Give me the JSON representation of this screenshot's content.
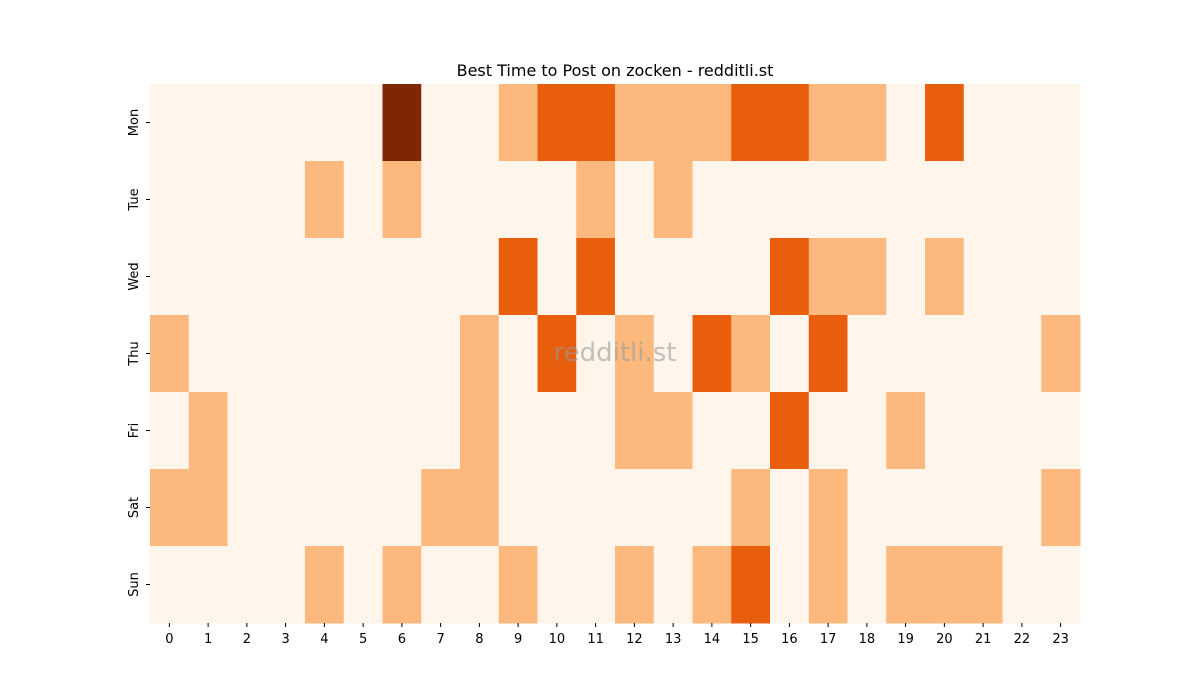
{
  "chart_data": {
    "type": "heatmap",
    "title": "Best Time to Post on zocken - redditli.st",
    "watermark": "redditli.st",
    "xlabel": "",
    "ylabel": "",
    "x": [
      "0",
      "1",
      "2",
      "3",
      "4",
      "5",
      "6",
      "7",
      "8",
      "9",
      "10",
      "11",
      "12",
      "13",
      "14",
      "15",
      "16",
      "17",
      "18",
      "19",
      "20",
      "21",
      "22",
      "23"
    ],
    "y": [
      "Mon",
      "Tue",
      "Wed",
      "Thu",
      "Fri",
      "Sat",
      "Sun"
    ],
    "values": [
      [
        0,
        0,
        0,
        0,
        0,
        0,
        3,
        0,
        0,
        1,
        2,
        2,
        1,
        1,
        1,
        2,
        2,
        1,
        1,
        0,
        2,
        0,
        0,
        0
      ],
      [
        0,
        0,
        0,
        0,
        1,
        0,
        1,
        0,
        0,
        0,
        0,
        1,
        0,
        1,
        0,
        0,
        0,
        0,
        0,
        0,
        0,
        0,
        0,
        0
      ],
      [
        0,
        0,
        0,
        0,
        0,
        0,
        0,
        0,
        0,
        2,
        0,
        2,
        0,
        0,
        0,
        0,
        2,
        1,
        1,
        0,
        1,
        0,
        0,
        0
      ],
      [
        1,
        0,
        0,
        0,
        0,
        0,
        0,
        0,
        1,
        0,
        2,
        0,
        1,
        0,
        2,
        1,
        0,
        2,
        0,
        0,
        0,
        0,
        0,
        1
      ],
      [
        0,
        1,
        0,
        0,
        0,
        0,
        0,
        0,
        1,
        0,
        0,
        0,
        1,
        1,
        0,
        0,
        2,
        0,
        0,
        1,
        0,
        0,
        0,
        0
      ],
      [
        1,
        1,
        0,
        0,
        0,
        0,
        0,
        1,
        1,
        0,
        0,
        0,
        0,
        0,
        0,
        1,
        0,
        1,
        0,
        0,
        0,
        0,
        0,
        1
      ],
      [
        0,
        0,
        0,
        0,
        1,
        0,
        1,
        0,
        0,
        1,
        0,
        0,
        1,
        0,
        1,
        2,
        0,
        1,
        0,
        1,
        1,
        1,
        0,
        0
      ]
    ],
    "value_range": [
      0,
      3
    ],
    "colormap": [
      "#fff5eb",
      "#fdb97d",
      "#e95e0d",
      "#7f2704"
    ],
    "grid": false,
    "legend": "none"
  }
}
